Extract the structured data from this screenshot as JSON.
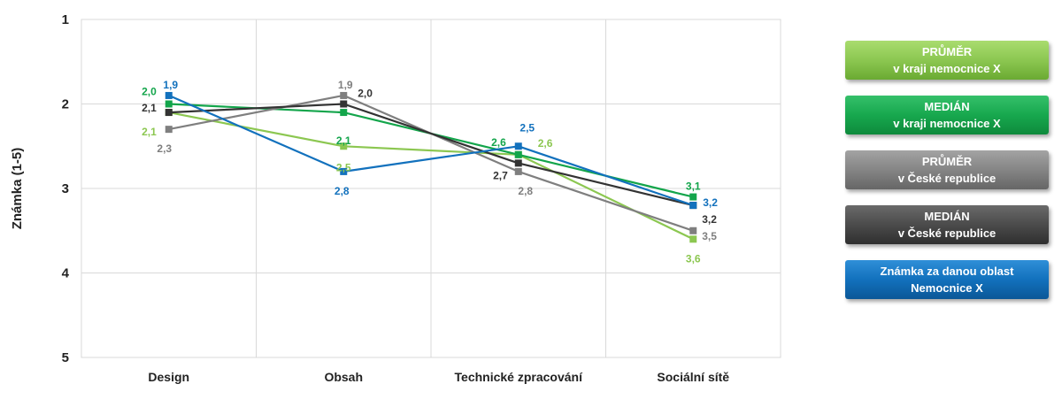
{
  "chart_data": {
    "type": "line",
    "ylabel": "Známka (1-5)",
    "ylim": [
      1,
      5
    ],
    "y_inverted": true,
    "yticks": [
      "1",
      "2",
      "3",
      "4",
      "5"
    ],
    "categories": [
      "Design",
      "Obsah",
      "Technické zpracování",
      "Sociální sítě"
    ],
    "grid": true,
    "legend_position": "right",
    "series": [
      {
        "name": "PRŮMĚR v kraji nemocnice X",
        "color": "#8cc751",
        "values": [
          2.1,
          2.5,
          2.6,
          3.6
        ],
        "labels": [
          "2,1",
          "2,5",
          "2,6",
          "3,6"
        ]
      },
      {
        "name": "MEDIÁN v kraji nemocnice X",
        "color": "#13a54b",
        "values": [
          2.0,
          2.1,
          2.6,
          3.1
        ],
        "labels": [
          "2,0",
          "2,1",
          "2,6",
          "3,1"
        ]
      },
      {
        "name": "PRŮMĚR v České republice",
        "color": "#7f7f7f",
        "values": [
          2.3,
          1.9,
          2.8,
          3.5
        ],
        "labels": [
          "2,3",
          "1,9",
          "2,8",
          "3,5"
        ]
      },
      {
        "name": "MEDIÁN v České republice",
        "color": "#333333",
        "values": [
          2.1,
          2.0,
          2.7,
          3.2
        ],
        "labels": [
          "2,1",
          "2,0",
          "2,7",
          "3,2"
        ]
      },
      {
        "name": "Známka za danou oblast Nemocnice X",
        "color": "#1271bd",
        "values": [
          1.9,
          2.8,
          2.5,
          3.2
        ],
        "labels": [
          "1,9",
          "2,8",
          "2,5",
          "3,2"
        ]
      }
    ]
  },
  "legend": [
    {
      "line1": "PRŮMĚR",
      "line2": "v kraji nemocnice X"
    },
    {
      "line1": "MEDIÁN",
      "line2": "v kraji nemocnice X"
    },
    {
      "line1": "PRŮMĚR",
      "line2": "v České republice"
    },
    {
      "line1": "MEDIÁN",
      "line2": "v České republice"
    },
    {
      "line1": "Známka za danou oblast",
      "line2": "Nemocnice X"
    }
  ]
}
